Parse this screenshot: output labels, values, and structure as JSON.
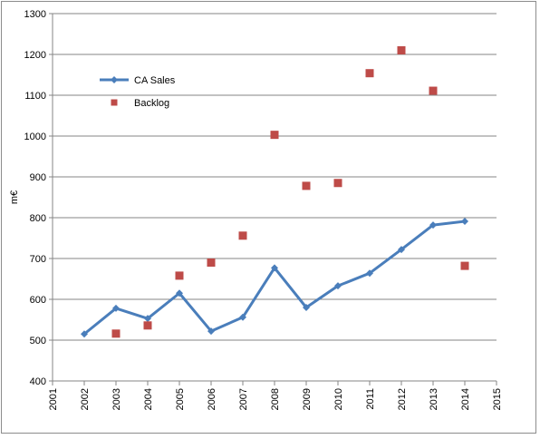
{
  "chart_data": {
    "type": "line",
    "ylabel": "m€",
    "xlim": [
      2001,
      2015
    ],
    "ylim": [
      400,
      1300
    ],
    "x_ticks": [
      2001,
      2002,
      2003,
      2004,
      2005,
      2006,
      2007,
      2008,
      2009,
      2010,
      2011,
      2012,
      2013,
      2014,
      2015
    ],
    "y_ticks": [
      400,
      500,
      600,
      700,
      800,
      900,
      1000,
      1100,
      1200,
      1300
    ],
    "grid": "horizontal",
    "legend_position": "top-left",
    "series": [
      {
        "name": "CA Sales",
        "style": "line-diamond",
        "color": "#4a7ebb",
        "x": [
          2002,
          2003,
          2004,
          2005,
          2006,
          2007,
          2008,
          2009,
          2010,
          2011,
          2012,
          2013,
          2014
        ],
        "y": [
          515,
          578,
          553,
          615,
          522,
          556,
          677,
          580,
          633,
          664,
          722,
          782,
          791
        ]
      },
      {
        "name": "Backlog",
        "style": "scatter-square",
        "color": "#be4b48",
        "x": [
          2003,
          2004,
          2005,
          2006,
          2007,
          2008,
          2009,
          2010,
          2011,
          2012,
          2013,
          2014
        ],
        "y": [
          516,
          536,
          658,
          690,
          756,
          1003,
          878,
          885,
          1154,
          1210,
          1111,
          682
        ]
      }
    ]
  }
}
